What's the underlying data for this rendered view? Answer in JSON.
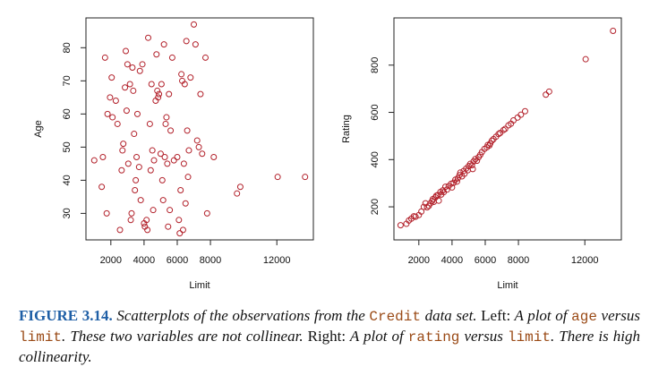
{
  "colors": {
    "point": "#b2202a",
    "axis": "#222222",
    "label_blue": "#1f5fa6",
    "code_brown": "#9a4a16"
  },
  "chart_data": [
    {
      "type": "scatter",
      "title": "",
      "xlabel": "Limit",
      "ylabel": "Age",
      "xlim": [
        500,
        14200
      ],
      "ylim": [
        22,
        89
      ],
      "x_ticks": [
        2000,
        4000,
        6000,
        8000,
        12000
      ],
      "x_tick_labels": [
        "2000",
        "4000",
        "6000",
        "8000",
        "12000"
      ],
      "y_ticks": [
        30,
        40,
        50,
        60,
        70,
        80
      ],
      "y_tick_labels": [
        "30",
        "40",
        "50",
        "60",
        "70",
        "80"
      ],
      "points": [
        [
          1000,
          46
        ],
        [
          1450,
          38
        ],
        [
          1520,
          47
        ],
        [
          1650,
          77
        ],
        [
          1750,
          30
        ],
        [
          1800,
          60
        ],
        [
          1950,
          65
        ],
        [
          2050,
          71
        ],
        [
          2100,
          59
        ],
        [
          2300,
          64
        ],
        [
          2400,
          57
        ],
        [
          2550,
          25
        ],
        [
          2650,
          43
        ],
        [
          2700,
          49
        ],
        [
          2750,
          51
        ],
        [
          2850,
          68
        ],
        [
          2900,
          79
        ],
        [
          2950,
          61
        ],
        [
          3000,
          75
        ],
        [
          3050,
          45
        ],
        [
          3150,
          69
        ],
        [
          3200,
          28
        ],
        [
          3250,
          30
        ],
        [
          3300,
          74
        ],
        [
          3350,
          67
        ],
        [
          3400,
          54
        ],
        [
          3450,
          37
        ],
        [
          3500,
          40
        ],
        [
          3550,
          47
        ],
        [
          3600,
          60
        ],
        [
          3700,
          44
        ],
        [
          3750,
          73
        ],
        [
          3800,
          34
        ],
        [
          3900,
          75
        ],
        [
          4000,
          27
        ],
        [
          4050,
          26
        ],
        [
          4150,
          28
        ],
        [
          4200,
          25
        ],
        [
          4250,
          83
        ],
        [
          4350,
          57
        ],
        [
          4400,
          43
        ],
        [
          4450,
          69
        ],
        [
          4500,
          49
        ],
        [
          4550,
          31
        ],
        [
          4600,
          46
        ],
        [
          4700,
          64
        ],
        [
          4750,
          78
        ],
        [
          4800,
          67
        ],
        [
          4850,
          65
        ],
        [
          4900,
          66
        ],
        [
          5000,
          48
        ],
        [
          5050,
          69
        ],
        [
          5100,
          40
        ],
        [
          5150,
          34
        ],
        [
          5200,
          81
        ],
        [
          5250,
          47
        ],
        [
          5300,
          57
        ],
        [
          5350,
          59
        ],
        [
          5400,
          45
        ],
        [
          5450,
          26
        ],
        [
          5500,
          66
        ],
        [
          5550,
          31
        ],
        [
          5600,
          55
        ],
        [
          5700,
          77
        ],
        [
          5800,
          46
        ],
        [
          6000,
          47
        ],
        [
          6100,
          28
        ],
        [
          6150,
          24
        ],
        [
          6200,
          37
        ],
        [
          6250,
          72
        ],
        [
          6300,
          70
        ],
        [
          6350,
          25
        ],
        [
          6400,
          45
        ],
        [
          6450,
          69
        ],
        [
          6500,
          33
        ],
        [
          6550,
          82
        ],
        [
          6600,
          55
        ],
        [
          6650,
          41
        ],
        [
          6700,
          49
        ],
        [
          6800,
          71
        ],
        [
          7000,
          87
        ],
        [
          7100,
          81
        ],
        [
          7200,
          52
        ],
        [
          7300,
          50
        ],
        [
          7400,
          66
        ],
        [
          7500,
          48
        ],
        [
          7700,
          77
        ],
        [
          7800,
          30
        ],
        [
          8200,
          47
        ],
        [
          9600,
          36
        ],
        [
          9800,
          38
        ],
        [
          12050,
          41
        ],
        [
          13700,
          41
        ]
      ]
    },
    {
      "type": "scatter",
      "title": "",
      "xlabel": "Limit",
      "ylabel": "Rating",
      "xlim": [
        500,
        14200
      ],
      "ylim": [
        60,
        1000
      ],
      "x_ticks": [
        2000,
        4000,
        6000,
        8000,
        12000
      ],
      "x_tick_labels": [
        "2000",
        "4000",
        "6000",
        "8000",
        "12000"
      ],
      "y_ticks": [
        200,
        400,
        600,
        800
      ],
      "y_tick_labels": [
        "200",
        "400",
        "600",
        "800"
      ],
      "points": [
        [
          900,
          122
        ],
        [
          1250,
          128
        ],
        [
          1400,
          142
        ],
        [
          1550,
          150
        ],
        [
          1700,
          160
        ],
        [
          1800,
          158
        ],
        [
          2000,
          165
        ],
        [
          2150,
          180
        ],
        [
          2300,
          200
        ],
        [
          2400,
          215
        ],
        [
          2500,
          198
        ],
        [
          2600,
          204
        ],
        [
          2700,
          215
        ],
        [
          2800,
          225
        ],
        [
          2850,
          233
        ],
        [
          2900,
          221
        ],
        [
          3000,
          240
        ],
        [
          3050,
          247
        ],
        [
          3150,
          250
        ],
        [
          3200,
          226
        ],
        [
          3300,
          263
        ],
        [
          3350,
          252
        ],
        [
          3450,
          270
        ],
        [
          3500,
          262
        ],
        [
          3600,
          285
        ],
        [
          3700,
          273
        ],
        [
          3800,
          288
        ],
        [
          3950,
          298
        ],
        [
          4000,
          282
        ],
        [
          4100,
          302
        ],
        [
          4200,
          315
        ],
        [
          4300,
          307
        ],
        [
          4350,
          321
        ],
        [
          4450,
          334
        ],
        [
          4500,
          345
        ],
        [
          4600,
          329
        ],
        [
          4700,
          352
        ],
        [
          4750,
          340
        ],
        [
          4850,
          362
        ],
        [
          4950,
          355
        ],
        [
          5000,
          372
        ],
        [
          5100,
          382
        ],
        [
          5200,
          376
        ],
        [
          5250,
          360
        ],
        [
          5300,
          392
        ],
        [
          5400,
          402
        ],
        [
          5500,
          395
        ],
        [
          5600,
          410
        ],
        [
          5700,
          420
        ],
        [
          5800,
          432
        ],
        [
          5950,
          445
        ],
        [
          6100,
          452
        ],
        [
          6150,
          462
        ],
        [
          6250,
          460
        ],
        [
          6300,
          468
        ],
        [
          6400,
          480
        ],
        [
          6500,
          487
        ],
        [
          6650,
          497
        ],
        [
          6800,
          508
        ],
        [
          6900,
          513
        ],
        [
          7100,
          525
        ],
        [
          7200,
          530
        ],
        [
          7400,
          545
        ],
        [
          7550,
          552
        ],
        [
          7700,
          566
        ],
        [
          7950,
          578
        ],
        [
          8150,
          590
        ],
        [
          8400,
          605
        ],
        [
          9650,
          675
        ],
        [
          9850,
          688
        ],
        [
          12050,
          825
        ],
        [
          13700,
          945
        ]
      ]
    }
  ],
  "caption": {
    "label": "FIGURE 3.14.",
    "t1": " Scatterplots of the observations from the ",
    "code1": "Credit",
    "t2": " data set. ",
    "left": "Left:",
    "t3": " A plot of ",
    "code2": "age",
    "t4": " versus ",
    "code3": "limit",
    "t5": ". These two variables are not collinear. ",
    "right": "Right:",
    "t6": " A plot of ",
    "code4": "rating",
    "t7": " versus ",
    "code5": "limit",
    "t8": ". There is high collinearity."
  }
}
